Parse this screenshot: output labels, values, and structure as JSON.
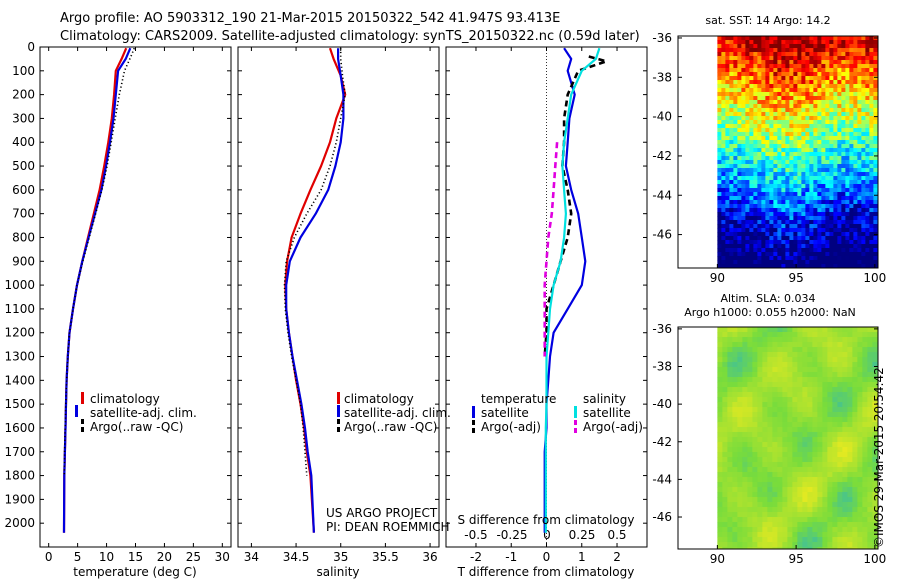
{
  "header": {
    "line1": "Argo profile: AO 5903312_190 21-Mar-2015 20150322_542 41.947S 93.413E",
    "line2": "Climatology: CARS2009. Satellite-adjusted climatology: synTS_20150322.nc (0.59d later)"
  },
  "project": {
    "line1": "US ARGO PROJECT",
    "line2": "PI: DEAN ROEMMICH"
  },
  "watermark": "©IMOS 29-Mar-2015 20:54:42",
  "maps": {
    "sst_title": "sat. SST: 14 Argo: 14.2",
    "sla_title1": "Altim. SLA: 0.034",
    "sla_title2": "Argo h1000: 0.055 h2000: NaN"
  },
  "chart_data": [
    {
      "type": "line",
      "id": "temperature",
      "xlabel": "temperature (deg C)",
      "ylabel": "",
      "xlim": [
        -1.5,
        31.5
      ],
      "ylim": [
        2100,
        0
      ],
      "xticks": [
        0,
        5,
        10,
        15,
        20,
        25,
        30
      ],
      "yticks": [
        0,
        100,
        200,
        300,
        400,
        500,
        600,
        700,
        800,
        900,
        1000,
        1100,
        1200,
        1300,
        1400,
        1500,
        1600,
        1700,
        1800,
        1900,
        2000
      ],
      "legend": [
        "climatology",
        "satellite-adj. clim.",
        "Argo(..raw -QC)"
      ],
      "legend_position": "lower-middle",
      "series": [
        {
          "name": "climatology",
          "color": "#e00000",
          "style": "solid",
          "x": [
            13.4,
            12.6,
            11.6,
            11.3,
            10.9,
            10.3,
            9.6,
            8.8,
            7.8,
            6.8,
            5.8,
            4.9,
            4.2,
            3.6,
            3.3,
            3.1,
            3.0,
            2.9,
            2.8,
            2.7,
            2.65
          ],
          "y": [
            5,
            50,
            100,
            200,
            300,
            400,
            500,
            600,
            700,
            800,
            900,
            1000,
            1100,
            1200,
            1300,
            1400,
            1500,
            1600,
            1700,
            1800,
            2040
          ]
        },
        {
          "name": "satellite-adj. clim.",
          "color": "#0000e0",
          "style": "solid",
          "x": [
            14.1,
            13.3,
            12.0,
            11.6,
            11.2,
            10.6,
            9.9,
            9.1,
            8.0,
            6.9,
            5.8,
            4.9,
            4.2,
            3.6,
            3.3,
            3.1,
            3.0,
            2.9,
            2.8,
            2.7,
            2.65
          ],
          "y": [
            5,
            50,
            100,
            200,
            300,
            400,
            500,
            600,
            700,
            800,
            900,
            1000,
            1100,
            1200,
            1300,
            1400,
            1500,
            1600,
            1700,
            1800,
            2040
          ]
        },
        {
          "name": "Argo(..raw -QC)",
          "color": "#000000",
          "style": "dotted",
          "x": [
            14.8,
            14.2,
            13.1,
            12.2,
            11.5,
            10.8,
            10.1,
            9.2,
            8.1,
            7.0,
            5.9,
            4.9,
            4.2,
            3.6,
            3.3,
            3.1,
            2.95,
            2.85,
            2.75,
            2.7
          ],
          "y": [
            5,
            40,
            100,
            200,
            300,
            400,
            500,
            600,
            700,
            800,
            900,
            1000,
            1100,
            1200,
            1300,
            1400,
            1500,
            1600,
            1700,
            1800
          ]
        }
      ]
    },
    {
      "type": "line",
      "id": "salinity",
      "xlabel": "salinity",
      "ylabel": "",
      "xlim": [
        33.85,
        36.1
      ],
      "ylim": [
        2100,
        0
      ],
      "xticks": [
        34,
        34.5,
        35,
        35.5,
        36
      ],
      "legend": [
        "climatology",
        "satellite-adj. clim.",
        "Argo(..raw -QC)"
      ],
      "legend_position": "lower-middle",
      "series": [
        {
          "name": "climatology",
          "color": "#e00000",
          "style": "solid",
          "x": [
            34.88,
            34.92,
            35.0,
            35.05,
            34.95,
            34.88,
            34.78,
            34.66,
            34.55,
            34.45,
            34.4,
            34.38,
            34.39,
            34.42,
            34.46,
            34.5,
            34.55,
            34.59,
            34.62,
            34.66,
            34.7
          ],
          "y": [
            5,
            50,
            120,
            200,
            300,
            400,
            500,
            600,
            700,
            800,
            900,
            1000,
            1100,
            1200,
            1300,
            1400,
            1500,
            1600,
            1700,
            1800,
            2040
          ]
        },
        {
          "name": "satellite-adj. clim.",
          "color": "#0000e0",
          "style": "solid",
          "x": [
            34.97,
            34.97,
            35.0,
            35.03,
            35.03,
            35.0,
            34.94,
            34.86,
            34.72,
            34.55,
            34.43,
            34.39,
            34.39,
            34.42,
            34.46,
            34.51,
            34.56,
            34.6,
            34.63,
            34.67,
            34.7
          ],
          "y": [
            5,
            50,
            120,
            200,
            300,
            400,
            500,
            600,
            700,
            800,
            900,
            1000,
            1100,
            1200,
            1300,
            1400,
            1500,
            1600,
            1700,
            1800,
            2040
          ]
        },
        {
          "name": "Argo(..raw -QC)",
          "color": "#000000",
          "style": "dotted",
          "x": [
            35.0,
            35.0,
            35.02,
            35.05,
            35.0,
            34.95,
            34.88,
            34.78,
            34.62,
            34.48,
            34.39,
            34.37,
            34.38,
            34.41,
            34.45,
            34.5,
            34.55,
            34.58,
            34.6,
            34.62
          ],
          "y": [
            5,
            50,
            120,
            200,
            300,
            400,
            500,
            600,
            700,
            800,
            900,
            1000,
            1100,
            1200,
            1300,
            1400,
            1500,
            1600,
            1700,
            1800
          ]
        }
      ]
    },
    {
      "type": "line",
      "id": "difference",
      "xlabel": "T difference from climatology",
      "top_axis_label": "S difference from climatology",
      "ylabel": "",
      "xlim": [
        -2.85,
        2.85
      ],
      "ylim": [
        2100,
        0
      ],
      "xticks": [
        -2,
        -1,
        0,
        1,
        2
      ],
      "top_xticks": [
        "-0.5",
        "-0.25",
        "0",
        "0.25",
        "0.5"
      ],
      "legend_group1_title": "temperature",
      "legend_group2_title": "salinity",
      "legend": [
        "satellite",
        "Argo(-adj)",
        "satellite",
        "Argo(-adj)"
      ],
      "legend_position": "lower",
      "series": [
        {
          "name": "satellite",
          "group": "temperature",
          "color": "#0000e0",
          "style": "solid",
          "x": [
            0.5,
            0.7,
            0.6,
            0.8,
            0.65,
            0.6,
            0.55,
            0.7,
            0.9,
            1.0,
            1.1,
            1.0,
            0.6,
            0.2,
            0.1,
            0.05,
            0.0,
            0.0,
            -0.05,
            -0.05,
            -0.05
          ],
          "y": [
            5,
            50,
            100,
            200,
            300,
            400,
            500,
            600,
            700,
            800,
            900,
            1000,
            1100,
            1200,
            1300,
            1400,
            1500,
            1600,
            1700,
            1800,
            2040
          ]
        },
        {
          "name": "Argo(-adj)",
          "group": "temperature",
          "color": "#000000",
          "style": "dashed",
          "x": [
            1.2,
            1.7,
            0.9,
            0.6,
            0.5,
            0.5,
            0.45,
            0.6,
            0.7,
            0.6,
            0.4,
            0.2,
            0.0,
            0.0,
            -0.05
          ],
          "y": [
            40,
            60,
            100,
            200,
            300,
            400,
            500,
            600,
            700,
            800,
            900,
            1000,
            1100,
            1200,
            1300
          ]
        },
        {
          "name": "satellite",
          "group": "salinity",
          "color": "#00e0e0",
          "style": "solid",
          "x": [
            1.5,
            1.4,
            1.0,
            0.7,
            0.6,
            0.5,
            0.45,
            0.5,
            0.55,
            0.5,
            0.4,
            0.2,
            0.1,
            0.05,
            0.0,
            0.0,
            0.0,
            -0.02,
            -0.02,
            -0.02,
            -0.02
          ],
          "y": [
            5,
            50,
            100,
            200,
            300,
            400,
            500,
            600,
            700,
            800,
            900,
            1000,
            1100,
            1200,
            1300,
            1400,
            1500,
            1600,
            1700,
            1800,
            2040
          ]
        },
        {
          "name": "Argo(-adj)",
          "group": "salinity",
          "color": "#e000e0",
          "style": "dashed",
          "x": [
            0.3,
            0.25,
            0.2,
            0.15,
            0.05,
            0.0,
            -0.05,
            -0.05,
            -0.05,
            -0.05
          ],
          "y": [
            400,
            500,
            600,
            700,
            800,
            900,
            1000,
            1100,
            1200,
            1300
          ]
        }
      ]
    },
    {
      "type": "heatmap",
      "id": "sst-map",
      "title": "sat. SST: 14 Argo: 14.2",
      "xlim": [
        87.5,
        100.2
      ],
      "ylim": [
        -47.7,
        -35.9
      ],
      "xticks": [
        90,
        95,
        100
      ],
      "yticks": [
        -36,
        -38,
        -40,
        -42,
        -44,
        -46
      ],
      "data_extent_lon": [
        90,
        100
      ],
      "colormap": "jet",
      "gradient": "warm (north) to cold (south)"
    },
    {
      "type": "heatmap",
      "id": "sla-map",
      "title": "Altim. SLA: 0.034",
      "xlim": [
        87.5,
        100.2
      ],
      "ylim": [
        -47.7,
        -35.9
      ],
      "xticks": [
        90,
        95,
        100
      ],
      "yticks": [
        -36,
        -38,
        -40,
        -42,
        -44,
        -46
      ],
      "data_extent_lon": [
        90,
        100
      ],
      "colormap": "yellow-green"
    }
  ]
}
